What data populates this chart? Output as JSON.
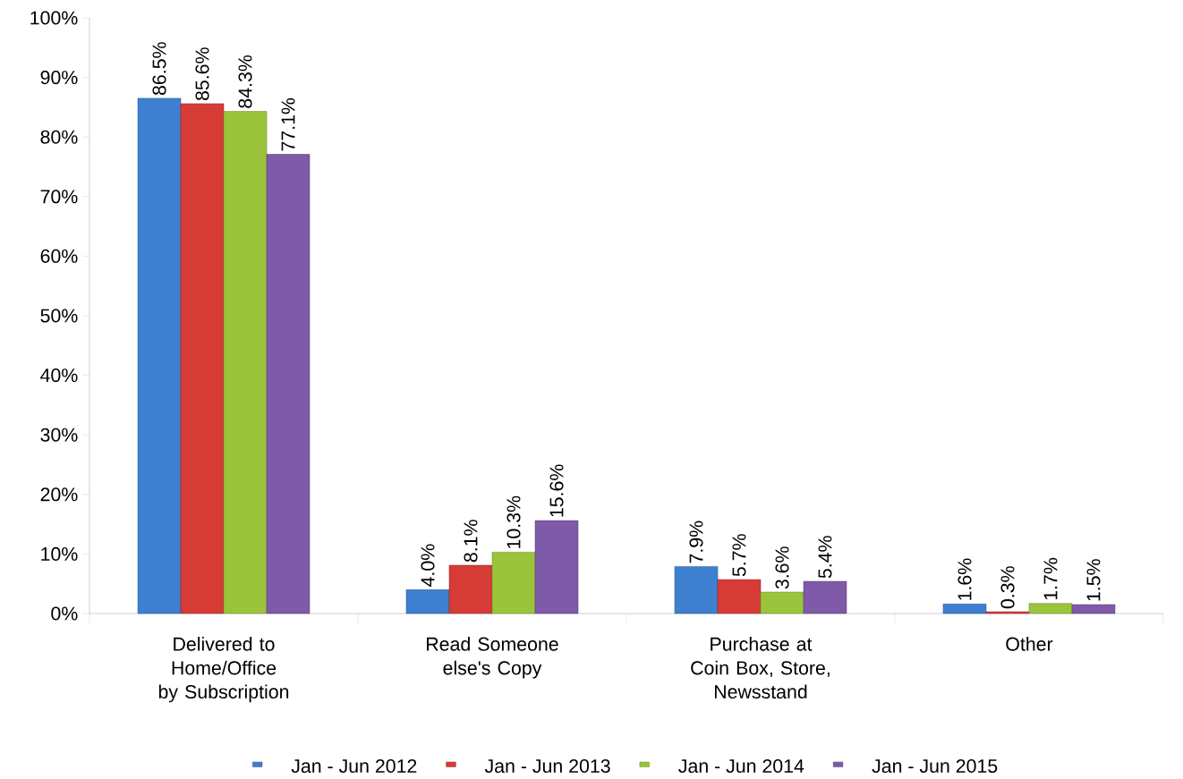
{
  "chart_data": {
    "type": "bar",
    "categories": [
      "Delivered to Home/Office by Subscription",
      "Read Someone else's Copy",
      "Purchase at Coin Box, Store, Newsstand",
      "Other"
    ],
    "series": [
      {
        "name": "Jan - Jun 2012",
        "color": "#3f7fcf",
        "values": [
          86.5,
          4.0,
          7.9,
          1.6
        ],
        "value_labels": [
          "86.5%",
          "4.0%",
          "7.9%",
          "1.6%"
        ]
      },
      {
        "name": "Jan - Jun 2013",
        "color": "#d63b36",
        "values": [
          85.6,
          8.1,
          5.7,
          0.3
        ],
        "value_labels": [
          "85.6%",
          "8.1%",
          "5.7%",
          "0.3%"
        ]
      },
      {
        "name": "Jan - Jun 2014",
        "color": "#9bc43c",
        "values": [
          84.3,
          10.3,
          3.6,
          1.7
        ],
        "value_labels": [
          "84.3%",
          "10.3%",
          "3.6%",
          "1.7%"
        ]
      },
      {
        "name": "Jan - Jun 2015",
        "color": "#7f5aa8",
        "values": [
          77.1,
          15.6,
          5.4,
          1.5
        ],
        "value_labels": [
          "77.1%",
          "15.6%",
          "5.4%",
          "1.5%"
        ]
      }
    ],
    "ylim": [
      0,
      100
    ],
    "yticks": [
      {
        "value": 0,
        "label": "0%"
      },
      {
        "value": 10,
        "label": "10%"
      },
      {
        "value": 20,
        "label": "20%"
      },
      {
        "value": 30,
        "label": "30%"
      },
      {
        "value": 40,
        "label": "40%"
      },
      {
        "value": 50,
        "label": "50%"
      },
      {
        "value": 60,
        "label": "60%"
      },
      {
        "value": 70,
        "label": "70%"
      },
      {
        "value": 80,
        "label": "80%"
      },
      {
        "value": 90,
        "label": "90%"
      },
      {
        "value": 100,
        "label": "100%"
      }
    ],
    "grid": false,
    "legend": "bottom"
  }
}
